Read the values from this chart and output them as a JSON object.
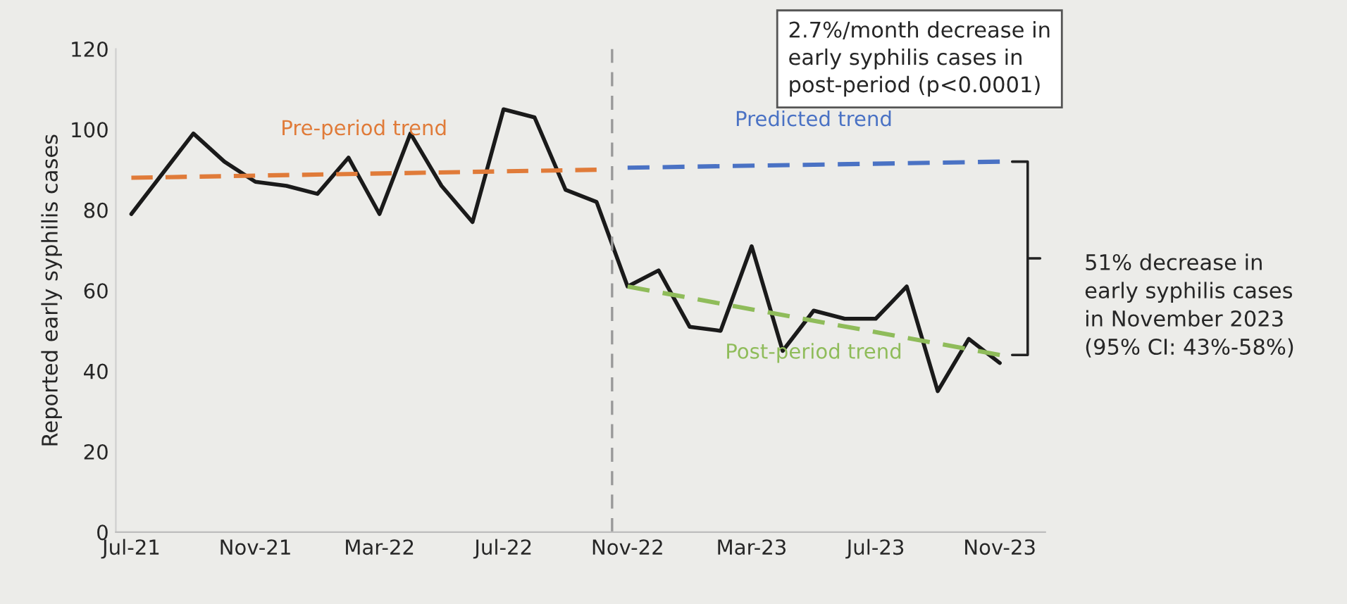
{
  "chart_data": {
    "type": "line",
    "ylabel": "Reported early syphilis cases",
    "x": [
      "2021-07",
      "2021-08",
      "2021-09",
      "2021-10",
      "2021-11",
      "2021-12",
      "2022-01",
      "2022-02",
      "2022-03",
      "2022-04",
      "2022-05",
      "2022-06",
      "2022-07",
      "2022-08",
      "2022-09",
      "2022-10",
      "2022-11",
      "2022-12",
      "2023-01",
      "2023-02",
      "2023-03",
      "2023-04",
      "2023-05",
      "2023-06",
      "2023-07",
      "2023-08",
      "2023-09",
      "2023-10",
      "2023-11"
    ],
    "series": [
      {
        "color": "#1a1a1a",
        "values": [
          79,
          89,
          99,
          92,
          87,
          86,
          84,
          93,
          79,
          99,
          86,
          77,
          105,
          103,
          85,
          82,
          61,
          65,
          51,
          50,
          71,
          45,
          55,
          53,
          53,
          61,
          35,
          48,
          42
        ]
      },
      {
        "name": "Pre-period trend",
        "color": "#e07b39",
        "line_style": "dashed",
        "x": [
          "2021-07",
          "2022-10"
        ],
        "values": [
          88,
          90
        ]
      },
      {
        "name": "Predicted trend",
        "color": "#4a72c4",
        "line_style": "dashed",
        "x": [
          "2022-11",
          "2023-11"
        ],
        "values": [
          90.5,
          92
        ]
      },
      {
        "name": "Post-period trend",
        "color": "#8fbc5a",
        "line_style": "dashed",
        "x": [
          "2022-11",
          "2023-11"
        ],
        "values": [
          61,
          44
        ]
      }
    ],
    "xlim": [
      "2021-06-16",
      "2023-12-15"
    ],
    "xticks": [
      {
        "value": "2021-07",
        "label": "Jul-21"
      },
      {
        "value": "2021-11",
        "label": "Nov-21"
      },
      {
        "value": "2022-03",
        "label": "Mar-22"
      },
      {
        "value": "2022-07",
        "label": "Jul-22"
      },
      {
        "value": "2022-11",
        "label": "Nov-22"
      },
      {
        "value": "2023-03",
        "label": "Mar-23"
      },
      {
        "value": "2023-07",
        "label": "Jul-23"
      },
      {
        "value": "2023-11",
        "label": "Nov-23"
      }
    ],
    "ylim": [
      0,
      120
    ],
    "yticks": [
      0,
      20,
      40,
      60,
      80,
      100,
      120
    ],
    "ref_lines": [
      {
        "axis": "x",
        "value": "2022-10-16",
        "color": "#999999",
        "line_style": "dashed"
      }
    ],
    "annotations": [
      "2.7%/month decrease in\nearly syphilis cases in\npost-period (p<0.0001)",
      "51% decrease in\nearly syphilis cases\nin November 2023\n(95% CI: 43%-58%)"
    ],
    "grid": false,
    "legend": false,
    "marker": "none"
  }
}
